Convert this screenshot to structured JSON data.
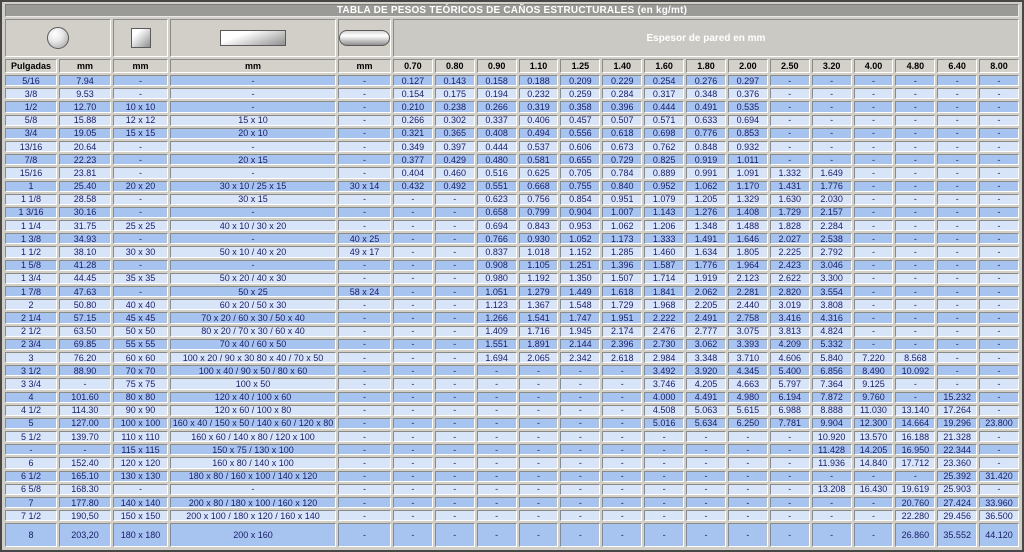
{
  "title": "TABLA DE PESOS TEÓRICOS DE CAÑOS ESTRUCTURALES (en kg/mt)",
  "espesor_header": "Espesor de pared en mm",
  "shapes": [
    "round-tube-icon",
    "square-tube-icon",
    "rectangular-tube-icon",
    "oval-tube-icon"
  ],
  "columns": [
    "Pulgadas",
    "mm",
    "mm",
    "mm",
    "mm"
  ],
  "thickness_columns": [
    "0.70",
    "0.80",
    "0.90",
    "1.10",
    "1.25",
    "1.40",
    "1.60",
    "1.80",
    "2.00",
    "2.50",
    "3.20",
    "4.00",
    "4.80",
    "6.40",
    "8.00"
  ],
  "colors": {
    "row_dark": "#a6c4ef",
    "row_light": "#d8e5f8",
    "header_bg": "#d4d1ca",
    "title_bg": "#9a9a96",
    "data_text": "#1a1a6b"
  },
  "rows": [
    {
      "cols": [
        "5/16",
        "7.94",
        "-",
        "-",
        "-"
      ],
      "weights": [
        "0.127",
        "0.143",
        "0.158",
        "0.188",
        "0.209",
        "0.229",
        "0.254",
        "0.276",
        "0.297",
        "-",
        "-",
        "-",
        "-",
        "-",
        "-"
      ]
    },
    {
      "cols": [
        "3/8",
        "9.53",
        "-",
        "-",
        "-"
      ],
      "weights": [
        "0.154",
        "0.175",
        "0.194",
        "0.232",
        "0.259",
        "0.284",
        "0.317",
        "0.348",
        "0.376",
        "-",
        "-",
        "-",
        "-",
        "-",
        "-"
      ]
    },
    {
      "cols": [
        "1/2",
        "12.70",
        "10 x 10",
        "-",
        "-"
      ],
      "weights": [
        "0.210",
        "0.238",
        "0.266",
        "0.319",
        "0.358",
        "0.396",
        "0.444",
        "0.491",
        "0.535",
        "-",
        "-",
        "-",
        "-",
        "-",
        "-"
      ]
    },
    {
      "cols": [
        "5/8",
        "15.88",
        "12 x 12",
        "15 x 10",
        "-"
      ],
      "weights": [
        "0.266",
        "0.302",
        "0.337",
        "0.406",
        "0.457",
        "0.507",
        "0.571",
        "0.633",
        "0.694",
        "-",
        "-",
        "-",
        "-",
        "-",
        "-"
      ]
    },
    {
      "cols": [
        "3/4",
        "19.05",
        "15 x 15",
        "20 x 10",
        "-"
      ],
      "weights": [
        "0.321",
        "0.365",
        "0.408",
        "0.494",
        "0.556",
        "0.618",
        "0.698",
        "0.776",
        "0.853",
        "-",
        "-",
        "-",
        "-",
        "-",
        "-"
      ]
    },
    {
      "cols": [
        "13/16",
        "20.64",
        "-",
        "-",
        "-"
      ],
      "weights": [
        "0.349",
        "0.397",
        "0.444",
        "0.537",
        "0.606",
        "0.673",
        "0.762",
        "0.848",
        "0.932",
        "-",
        "-",
        "-",
        "-",
        "-",
        "-"
      ]
    },
    {
      "cols": [
        "7/8",
        "22.23",
        "-",
        "20 x 15",
        "-"
      ],
      "weights": [
        "0.377",
        "0.429",
        "0.480",
        "0.581",
        "0.655",
        "0.729",
        "0.825",
        "0.919",
        "1.011",
        "-",
        "-",
        "-",
        "-",
        "-",
        "-"
      ]
    },
    {
      "cols": [
        "15/16",
        "23.81",
        "-",
        "-",
        "-"
      ],
      "weights": [
        "0.404",
        "0.460",
        "0.516",
        "0.625",
        "0.705",
        "0.784",
        "0.889",
        "0.991",
        "1.091",
        "1.332",
        "1.649",
        "-",
        "-",
        "-",
        "-"
      ]
    },
    {
      "cols": [
        "1",
        "25.40",
        "20 x 20",
        "30 x 10 / 25 x 15",
        "30 x 14"
      ],
      "weights": [
        "0.432",
        "0.492",
        "0.551",
        "0.668",
        "0.755",
        "0.840",
        "0.952",
        "1.062",
        "1.170",
        "1.431",
        "1.776",
        "-",
        "-",
        "-",
        "-"
      ]
    },
    {
      "cols": [
        "1 1/8",
        "28.58",
        "-",
        "30 x 15",
        "-"
      ],
      "weights": [
        "-",
        "-",
        "0.623",
        "0.756",
        "0.854",
        "0.951",
        "1.079",
        "1.205",
        "1.329",
        "1.630",
        "2.030",
        "-",
        "-",
        "-",
        "-"
      ]
    },
    {
      "cols": [
        "1 3/16",
        "30.16",
        "-",
        "-",
        "-"
      ],
      "weights": [
        "-",
        "-",
        "0.658",
        "0.799",
        "0.904",
        "1.007",
        "1.143",
        "1.276",
        "1.408",
        "1.729",
        "2.157",
        "-",
        "-",
        "-",
        "-"
      ]
    },
    {
      "cols": [
        "1 1/4",
        "31.75",
        "25 x 25",
        "40 x 10 / 30 x 20",
        "-"
      ],
      "weights": [
        "-",
        "-",
        "0.694",
        "0.843",
        "0.953",
        "1.062",
        "1.206",
        "1.348",
        "1.488",
        "1.828",
        "2.284",
        "-",
        "-",
        "-",
        "-"
      ]
    },
    {
      "cols": [
        "1 3/8",
        "34.93",
        "-",
        "-",
        "40 x 25"
      ],
      "weights": [
        "-",
        "-",
        "0.766",
        "0.930",
        "1.052",
        "1.173",
        "1.333",
        "1.491",
        "1.646",
        "2.027",
        "2.538",
        "-",
        "-",
        "-",
        "-"
      ]
    },
    {
      "cols": [
        "1 1/2",
        "38.10",
        "30 x 30",
        "50 x 10 / 40 x 20",
        "49 x 17"
      ],
      "weights": [
        "-",
        "-",
        "0.837",
        "1.018",
        "1.152",
        "1.285",
        "1.460",
        "1.634",
        "1.805",
        "2.225",
        "2.792",
        "-",
        "-",
        "-",
        "-"
      ]
    },
    {
      "cols": [
        "1 5/8",
        "41.28",
        "-",
        "-",
        "-"
      ],
      "weights": [
        "-",
        "-",
        "0.908",
        "1.105",
        "1.251",
        "1.396",
        "1.587",
        "1.776",
        "1.964",
        "2.423",
        "3.046",
        "-",
        "-",
        "-",
        "-"
      ]
    },
    {
      "cols": [
        "1 3/4",
        "44.45",
        "35 x 35",
        "50 x 20 / 40 x 30",
        "-"
      ],
      "weights": [
        "-",
        "-",
        "0.980",
        "1.192",
        "1.350",
        "1.507",
        "1.714",
        "1.919",
        "2.123",
        "2.622",
        "3.300",
        "-",
        "-",
        "-",
        "-"
      ]
    },
    {
      "cols": [
        "1 7/8",
        "47.63",
        "-",
        "50 x 25",
        "58 x 24"
      ],
      "weights": [
        "-",
        "-",
        "1.051",
        "1.279",
        "1.449",
        "1.618",
        "1.841",
        "2.062",
        "2.281",
        "2.820",
        "3.554",
        "-",
        "-",
        "-",
        "-"
      ]
    },
    {
      "cols": [
        "2",
        "50.80",
        "40 x 40",
        "60 x 20 / 50 x 30",
        "-"
      ],
      "weights": [
        "-",
        "-",
        "1.123",
        "1.367",
        "1.548",
        "1.729",
        "1.968",
        "2.205",
        "2.440",
        "3.019",
        "3.808",
        "-",
        "-",
        "-",
        "-"
      ]
    },
    {
      "cols": [
        "2 1/4",
        "57.15",
        "45 x 45",
        "70 x 20 / 60 x 30 / 50 x 40",
        "-"
      ],
      "weights": [
        "-",
        "-",
        "1.266",
        "1.541",
        "1.747",
        "1.951",
        "2.222",
        "2.491",
        "2.758",
        "3.416",
        "4.316",
        "-",
        "-",
        "-",
        "-"
      ]
    },
    {
      "cols": [
        "2 1/2",
        "63.50",
        "50 x 50",
        "80 x 20 / 70 x 30 / 60 x 40",
        "-"
      ],
      "weights": [
        "-",
        "-",
        "1.409",
        "1.716",
        "1.945",
        "2.174",
        "2.476",
        "2.777",
        "3.075",
        "3.813",
        "4.824",
        "-",
        "-",
        "-",
        "-"
      ]
    },
    {
      "cols": [
        "2 3/4",
        "69.85",
        "55 x 55",
        "70 x 40 / 60 x 50",
        "-"
      ],
      "weights": [
        "-",
        "-",
        "1.551",
        "1.891",
        "2.144",
        "2.396",
        "2.730",
        "3.062",
        "3.393",
        "4.209",
        "5.332",
        "-",
        "-",
        "-",
        "-"
      ]
    },
    {
      "cols": [
        "3",
        "76.20",
        "60 x 60",
        "100 x 20 / 90 x 30 80 x 40 / 70 x 50",
        "-"
      ],
      "weights": [
        "-",
        "-",
        "1.694",
        "2.065",
        "2.342",
        "2.618",
        "2.984",
        "3.348",
        "3.710",
        "4.606",
        "5.840",
        "7.220",
        "8.568",
        "-",
        "-"
      ]
    },
    {
      "cols": [
        "3 1/2",
        "88.90",
        "70 x 70",
        "100 x 40 / 90 x 50 / 80 x 60",
        "-"
      ],
      "weights": [
        "-",
        "-",
        "-",
        "-",
        "-",
        "-",
        "3.492",
        "3.920",
        "4.345",
        "5.400",
        "6.856",
        "8.490",
        "10.092",
        "-",
        "-"
      ]
    },
    {
      "cols": [
        "3 3/4",
        "-",
        "75 x 75",
        "100 x 50",
        "-"
      ],
      "weights": [
        "-",
        "-",
        "-",
        "-",
        "-",
        "-",
        "3.746",
        "4.205",
        "4.663",
        "5.797",
        "7.364",
        "9.125",
        "-",
        "-",
        "-"
      ]
    },
    {
      "cols": [
        "4",
        "101.60",
        "80 x 80",
        "120 x 40 / 100 x 60",
        "-"
      ],
      "weights": [
        "-",
        "-",
        "-",
        "-",
        "-",
        "-",
        "4.000",
        "4.491",
        "4.980",
        "6.194",
        "7.872",
        "9.760",
        "-",
        "15.232",
        "-"
      ]
    },
    {
      "cols": [
        "4 1/2",
        "114.30",
        "90 x 90",
        "120 x 60 / 100 x 80",
        "-"
      ],
      "weights": [
        "-",
        "-",
        "-",
        "-",
        "-",
        "-",
        "4.508",
        "5.063",
        "5.615",
        "6.988",
        "8.888",
        "11.030",
        "13.140",
        "17.264",
        "-"
      ]
    },
    {
      "cols": [
        "5",
        "127.00",
        "100 x 100",
        "160 x 40 / 150 x 50 / 140 x 60 / 120 x 80",
        "-"
      ],
      "weights": [
        "-",
        "-",
        "-",
        "-",
        "-",
        "-",
        "5.016",
        "5.634",
        "6.250",
        "7.781",
        "9.904",
        "12.300",
        "14.664",
        "19.296",
        "23.800"
      ]
    },
    {
      "cols": [
        "5 1/2",
        "139.70",
        "110 x 110",
        "160 x 60 / 140 x 80 / 120 x 100",
        "-"
      ],
      "weights": [
        "-",
        "-",
        "-",
        "-",
        "-",
        "-",
        "-",
        "-",
        "-",
        "-",
        "10.920",
        "13.570",
        "16.188",
        "21.328",
        "-"
      ]
    },
    {
      "cols": [
        "-",
        "-",
        "115 x 115",
        "150 x 75 / 130 x 100",
        "-"
      ],
      "weights": [
        "-",
        "-",
        "-",
        "-",
        "-",
        "-",
        "-",
        "-",
        "-",
        "-",
        "11.428",
        "14.205",
        "16.950",
        "22.344",
        "-"
      ]
    },
    {
      "cols": [
        "6",
        "152.40",
        "120 x 120",
        "160 x 80 / 140 x 100",
        "-"
      ],
      "weights": [
        "-",
        "-",
        "-",
        "-",
        "-",
        "-",
        "-",
        "-",
        "-",
        "-",
        "11.936",
        "14.840",
        "17.712",
        "23.360",
        "-"
      ]
    },
    {
      "cols": [
        "6 1/2",
        "165.10",
        "130 x 130",
        "180 x 80 / 160 x 100 / 140 x 120",
        "-"
      ],
      "weights": [
        "-",
        "-",
        "-",
        "-",
        "-",
        "-",
        "-",
        "-",
        "-",
        "-",
        "-",
        "-",
        "-",
        "25.392",
        "31.420"
      ]
    },
    {
      "cols": [
        "6 5/8",
        "168.30",
        "-",
        "-",
        "-"
      ],
      "weights": [
        "-",
        "-",
        "-",
        "-",
        "-",
        "-",
        "-",
        "-",
        "-",
        "-",
        "13.208",
        "16.430",
        "19.619",
        "25.903",
        "-"
      ]
    },
    {
      "cols": [
        "7",
        "177.80",
        "140 x 140",
        "200 x 80 / 180 x 100 / 160 x 120",
        "-"
      ],
      "weights": [
        "-",
        "-",
        "-",
        "-",
        "-",
        "-",
        "-",
        "-",
        "-",
        "-",
        "-",
        "-",
        "20.760",
        "27.424",
        "33.960"
      ]
    },
    {
      "cols": [
        "7 1/2",
        "190,50",
        "150 x 150",
        "200 x 100 / 180 x 120 / 160 x 140",
        "-"
      ],
      "weights": [
        "-",
        "-",
        "-",
        "-",
        "-",
        "-",
        "-",
        "-",
        "-",
        "-",
        "-",
        "-",
        "22.280",
        "29.456",
        "36.500"
      ]
    },
    {
      "cols": [
        "8",
        "203,20",
        "180 x 180",
        "200 x 160",
        "-"
      ],
      "weights": [
        "-",
        "-",
        "-",
        "-",
        "-",
        "-",
        "-",
        "-",
        "-",
        "-",
        "-",
        "-",
        "26.860",
        "35.552",
        "44.120"
      ]
    }
  ]
}
